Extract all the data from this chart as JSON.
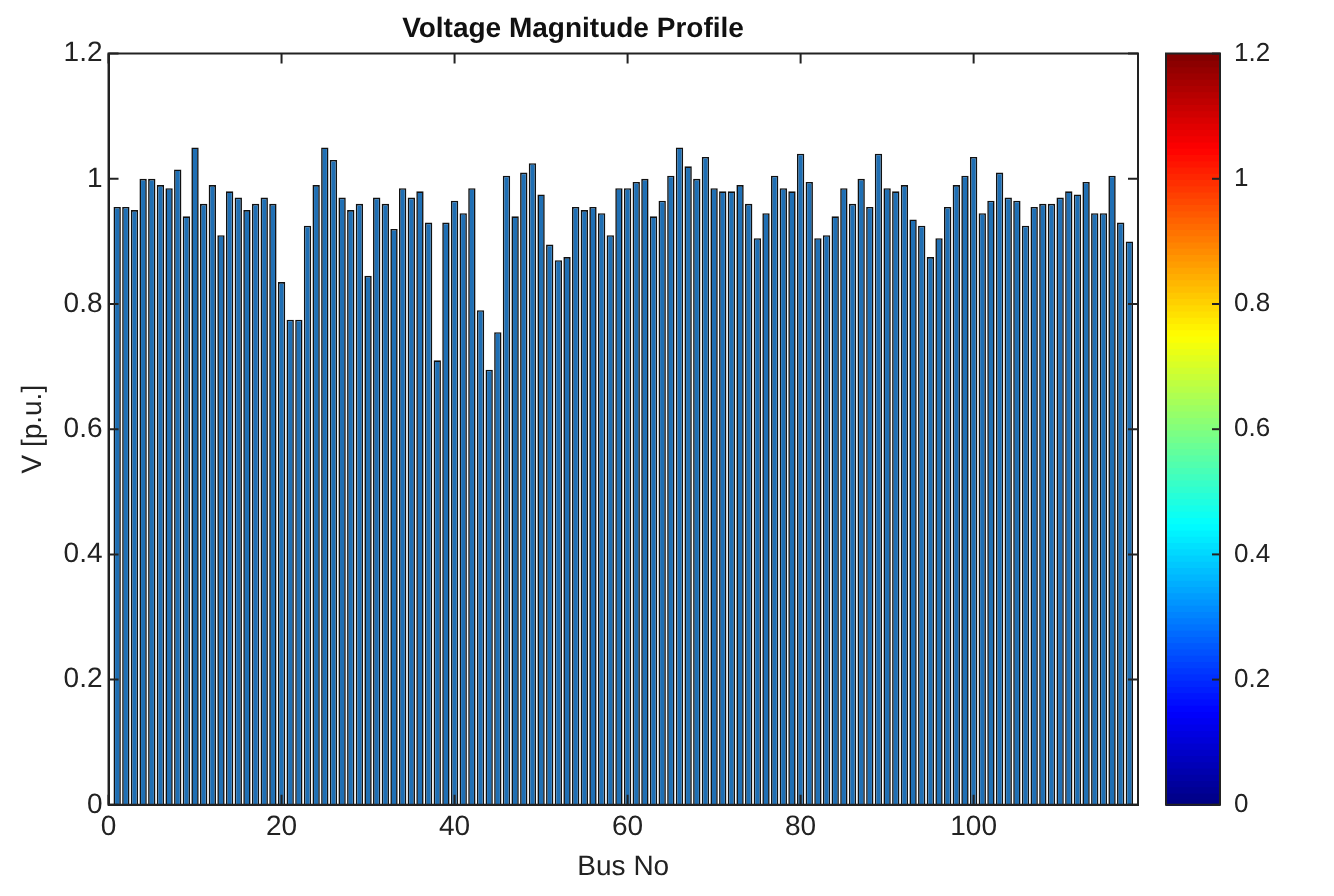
{
  "chart_data": {
    "type": "bar",
    "title": "Voltage Magnitude Profile",
    "xlabel": "Bus No",
    "ylabel": "V [p.u.]",
    "x": [
      1,
      2,
      3,
      4,
      5,
      6,
      7,
      8,
      9,
      10,
      11,
      12,
      13,
      14,
      15,
      16,
      17,
      18,
      19,
      20,
      21,
      22,
      23,
      24,
      25,
      26,
      27,
      28,
      29,
      30,
      31,
      32,
      33,
      34,
      35,
      36,
      37,
      38,
      39,
      40,
      41,
      42,
      43,
      44,
      45,
      46,
      47,
      48,
      49,
      50,
      51,
      52,
      53,
      54,
      55,
      56,
      57,
      58,
      59,
      60,
      61,
      62,
      63,
      64,
      65,
      66,
      67,
      68,
      69,
      70,
      71,
      72,
      73,
      74,
      75,
      76,
      77,
      78,
      79,
      80,
      81,
      82,
      83,
      84,
      85,
      86,
      87,
      88,
      89,
      90,
      91,
      92,
      93,
      94,
      95,
      96,
      97,
      98,
      99,
      100,
      101,
      102,
      103,
      104,
      105,
      106,
      107,
      108,
      109,
      110,
      111,
      112,
      113,
      114,
      115,
      116,
      117,
      118
    ],
    "values": [
      0.955,
      0.955,
      0.95,
      1.0,
      1.0,
      0.99,
      0.985,
      1.015,
      0.94,
      1.05,
      0.96,
      0.99,
      0.91,
      0.98,
      0.97,
      0.95,
      0.96,
      0.97,
      0.96,
      0.835,
      0.775,
      0.775,
      0.925,
      0.99,
      1.05,
      1.03,
      0.97,
      0.95,
      0.96,
      0.845,
      0.97,
      0.96,
      0.92,
      0.985,
      0.97,
      0.98,
      0.93,
      0.71,
      0.93,
      0.965,
      0.945,
      0.985,
      0.79,
      0.695,
      0.755,
      1.005,
      0.94,
      1.01,
      1.025,
      0.975,
      0.895,
      0.87,
      0.875,
      0.955,
      0.95,
      0.955,
      0.945,
      0.91,
      0.985,
      0.985,
      0.995,
      1.0,
      0.94,
      0.965,
      1.005,
      1.05,
      1.02,
      1.0,
      1.035,
      0.985,
      0.98,
      0.98,
      0.99,
      0.96,
      0.905,
      0.945,
      1.005,
      0.985,
      0.98,
      1.04,
      0.995,
      0.905,
      0.91,
      0.94,
      0.985,
      0.96,
      1.0,
      0.955,
      1.04,
      0.985,
      0.98,
      0.99,
      0.935,
      0.925,
      0.875,
      0.905,
      0.955,
      0.99,
      1.005,
      1.035,
      0.945,
      0.965,
      1.01,
      0.97,
      0.965,
      0.925,
      0.955,
      0.96,
      0.96,
      0.97,
      0.98,
      0.975,
      0.995,
      0.945,
      0.945,
      1.005,
      0.93,
      0.9
    ],
    "color": "#1f6fb4",
    "xlim": [
      0,
      119
    ],
    "xticks": [
      0,
      20,
      40,
      60,
      80,
      100
    ],
    "ylim": [
      0,
      1.2
    ],
    "yticks": [
      0,
      0.2,
      0.4,
      0.6,
      0.8,
      1,
      1.2
    ],
    "clim": [
      0,
      1.2
    ],
    "cticks": [
      0,
      0.2,
      0.4,
      0.6,
      0.8,
      1,
      1.2
    ],
    "grid": false,
    "legend": false
  }
}
